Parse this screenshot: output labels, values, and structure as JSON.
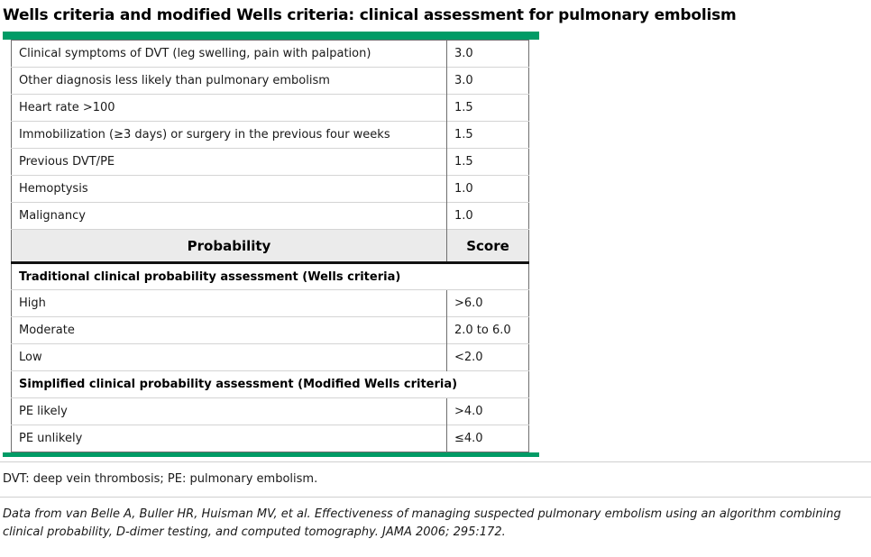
{
  "title": "Wells criteria and modified Wells criteria: clinical assessment for pulmonary embolism",
  "colors": {
    "accent_green": "#009B66",
    "header_bg": "#ebebeb",
    "outer_border": "#6f6f6f",
    "row_divider": "#d4d4d4",
    "thick_rule": "#111111"
  },
  "table": {
    "criteria_rows": [
      {
        "label": "Clinical symptoms of DVT (leg swelling, pain with palpation)",
        "score": "3.0"
      },
      {
        "label": "Other diagnosis less likely than pulmonary embolism",
        "score": "3.0"
      },
      {
        "label": "Heart rate >100",
        "score": "1.5"
      },
      {
        "label": "Immobilization (≥3 days) or surgery in the previous four weeks",
        "score": "1.5"
      },
      {
        "label": "Previous DVT/PE",
        "score": "1.5"
      },
      {
        "label": "Hemoptysis",
        "score": "1.0"
      },
      {
        "label": "Malignancy",
        "score": "1.0"
      }
    ],
    "header": {
      "probability": "Probability",
      "score": "Score"
    },
    "sections": [
      {
        "header": "Traditional clinical probability assessment (Wells criteria)",
        "rows": [
          {
            "label": "High",
            "score": ">6.0"
          },
          {
            "label": "Moderate",
            "score": "2.0 to 6.0"
          },
          {
            "label": "Low",
            "score": "<2.0"
          }
        ]
      },
      {
        "header": "Simplified clinical probability assessment (Modified Wells criteria)",
        "rows": [
          {
            "label": "PE likely",
            "score": ">4.0"
          },
          {
            "label": "PE unlikely",
            "score": "≤4.0"
          }
        ]
      }
    ]
  },
  "footnotes": {
    "abbreviations": "DVT: deep vein thrombosis; PE: pulmonary embolism.",
    "citation": "Data from van Belle A, Buller HR, Huisman MV, et al. Effectiveness of managing suspected pulmonary embolism using an algorithm combining clinical probability, D-dimer testing, and computed tomography. JAMA 2006; 295:172."
  }
}
